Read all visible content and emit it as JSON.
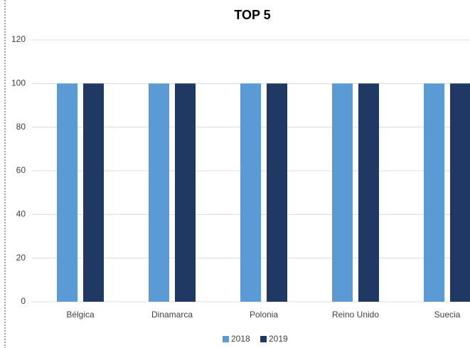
{
  "chart_data": {
    "type": "bar",
    "title": "TOP 5",
    "categories": [
      "Bélgica",
      "Dinamarca",
      "Polonia",
      "Reino Unido",
      "Suecia"
    ],
    "series": [
      {
        "name": "2018",
        "color": "#5b9bd5",
        "values": [
          100,
          100,
          100,
          100,
          100
        ]
      },
      {
        "name": "2019",
        "color": "#1f3864",
        "values": [
          100,
          100,
          100,
          100,
          100
        ]
      }
    ],
    "ylim": [
      0,
      120
    ],
    "yticks": [
      0,
      20,
      40,
      60,
      80,
      100,
      120
    ],
    "grid": true,
    "legend": "bottom"
  }
}
